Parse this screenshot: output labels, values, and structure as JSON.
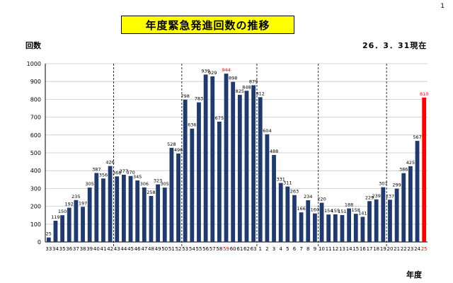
{
  "page_number": "1",
  "title": "年度緊急発進回数の推移",
  "as_of": "26．3．31現在",
  "chart_data": {
    "type": "bar",
    "title": "年度緊急発進回数の推移",
    "ylabel": "回数",
    "xlabel": "年度",
    "ylim": [
      0,
      1000
    ],
    "ytick_step": 100,
    "grid": true,
    "categories": [
      "33",
      "34",
      "35",
      "36",
      "37",
      "38",
      "39",
      "40",
      "41",
      "42",
      "43",
      "44",
      "45",
      "46",
      "47",
      "48",
      "49",
      "50",
      "51",
      "52",
      "53",
      "54",
      "55",
      "56",
      "57",
      "58",
      "59",
      "60",
      "61",
      "62",
      "63",
      "1",
      "2",
      "3",
      "4",
      "5",
      "6",
      "7",
      "8",
      "9",
      "10",
      "11",
      "12",
      "13",
      "14",
      "15",
      "16",
      "17",
      "18",
      "19",
      "20",
      "21",
      "22",
      "23",
      "24",
      "25"
    ],
    "values": [
      25,
      119,
      150,
      192,
      235,
      197,
      305,
      387,
      356,
      426,
      368,
      377,
      370,
      345,
      306,
      258,
      323,
      305,
      528,
      496,
      798,
      636,
      783,
      939,
      929,
      675,
      944,
      898,
      825,
      848,
      879,
      812,
      604,
      488,
      331,
      311,
      263,
      166,
      234,
      160,
      220,
      154,
      155,
      151,
      188,
      158,
      141,
      229,
      239,
      307,
      237,
      299,
      386,
      425,
      567,
      810
    ],
    "colors": {
      "bar": "#1f3a6e",
      "highlight": "#ff0000",
      "highlight_label": "#ff0000",
      "grid": "#c8c8c8"
    },
    "highlight_values": [
      59,
      25
    ],
    "era_dividers_after": [
      "42",
      "52",
      "63",
      "9",
      "19"
    ]
  }
}
